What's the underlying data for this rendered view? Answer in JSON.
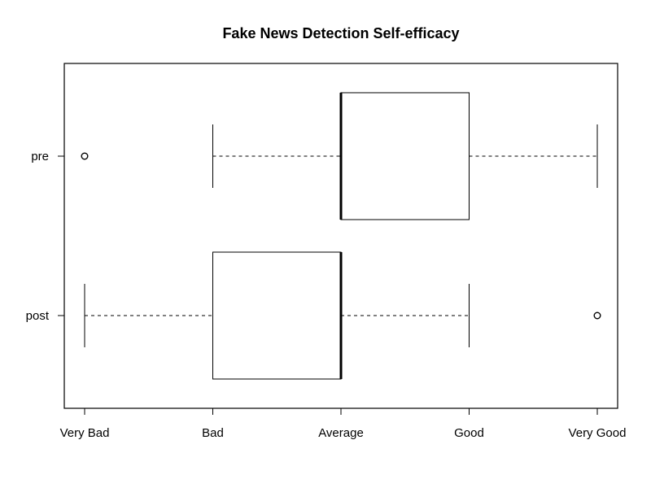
{
  "chart_data": {
    "type": "boxplot",
    "orientation": "horizontal",
    "title": "Fake News Detection Self-efficacy",
    "xlabel": "",
    "ylabel": "",
    "x_scale": {
      "min": 1,
      "max": 5,
      "ticks": [
        1,
        2,
        3,
        4,
        5
      ],
      "tick_labels": [
        "Very Bad",
        "Bad",
        "Average",
        "Good",
        "Very Good"
      ]
    },
    "groups": [
      {
        "name": "pre",
        "whisker_low": 2,
        "q1": 3,
        "median": 3,
        "q3": 4,
        "whisker_high": 5,
        "outliers": [
          1
        ]
      },
      {
        "name": "post",
        "whisker_low": 1,
        "q1": 2,
        "median": 3,
        "q3": 3,
        "whisker_high": 4,
        "outliers": [
          5
        ]
      }
    ],
    "grid": false,
    "legend": "none"
  },
  "colors": {
    "line": "#000000",
    "box_fill": "#ffffff",
    "background": "#ffffff"
  }
}
